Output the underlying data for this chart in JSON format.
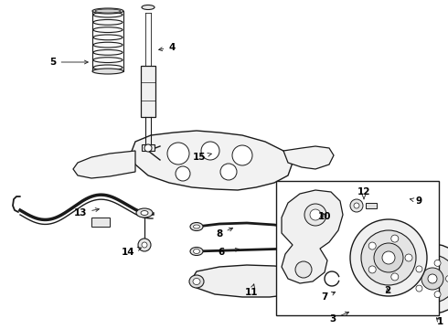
{
  "bg_color": "#ffffff",
  "line_color": "#1a1a1a",
  "label_color": "#000000",
  "fig_w": 4.9,
  "fig_h": 3.6,
  "dpi": 100,
  "label_fontsize": 7.5
}
